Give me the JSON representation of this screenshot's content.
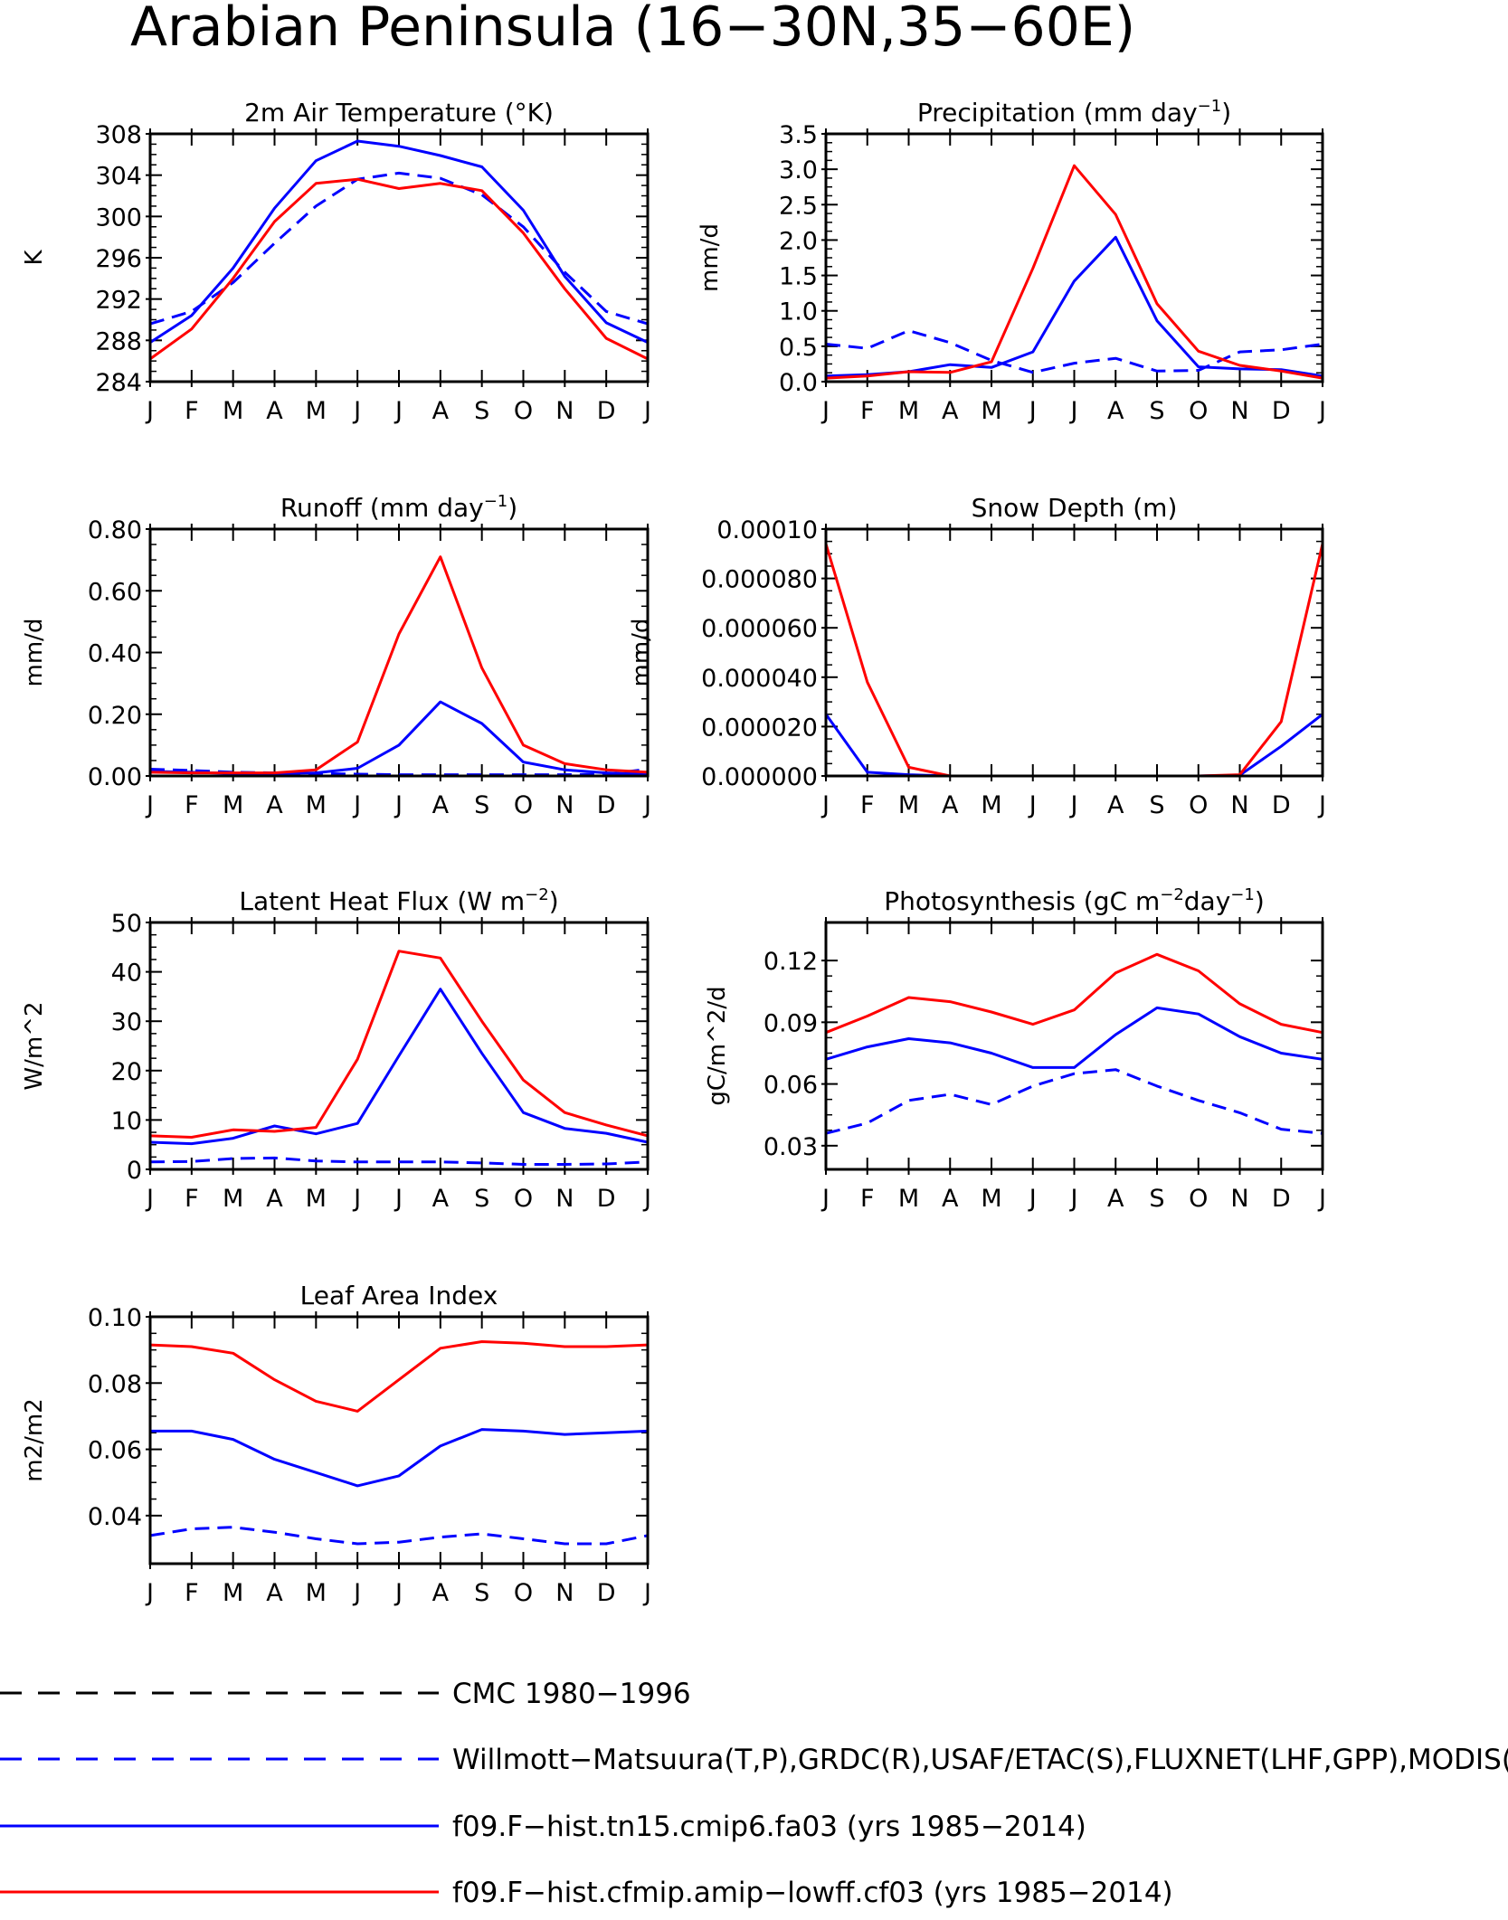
{
  "figure_title": "Arabian Peninsula (16−30N,35−60E)",
  "months": [
    "J",
    "F",
    "M",
    "A",
    "M",
    "J",
    "J",
    "A",
    "S",
    "O",
    "N",
    "D",
    "J"
  ],
  "colors": {
    "obs": "#0000ff",
    "model1": "#0000ff",
    "model2": "#ff0000",
    "cmc": "#000000"
  },
  "legend": [
    {
      "label": "CMC 1980−1996",
      "color": "#000000",
      "dash": "dashed"
    },
    {
      "label": "Willmott−Matsuura(T,P),GRDC(R),USAF/ETAC(S),FLUXNET(LHF,GPP),MODIS(L",
      "color": "#0000ff",
      "dash": "dashed"
    },
    {
      "label": "f09.F−hist.tn15.cmip6.fa03 (yrs 1985−2014)",
      "color": "#0000ff",
      "dash": "solid"
    },
    {
      "label": "f09.F−hist.cfmip.amip−lowff.cf03 (yrs 1985−2014)",
      "color": "#ff0000",
      "dash": "solid"
    }
  ],
  "chart_data": [
    {
      "type": "line",
      "title": "2m Air Temperature (°K)",
      "ylabel": "K",
      "ylim": [
        284,
        308
      ],
      "yticks": [
        284,
        288,
        292,
        296,
        300,
        304,
        308
      ],
      "ytick_labels": [
        "284",
        "288",
        "292",
        "296",
        "300",
        "304",
        "308"
      ],
      "series": [
        {
          "role": "obs",
          "values": [
            289.6,
            290.8,
            293.6,
            297.4,
            301.0,
            303.6,
            304.2,
            303.7,
            302.1,
            299.0,
            294.6,
            290.8,
            289.6
          ]
        },
        {
          "role": "model1",
          "values": [
            287.8,
            290.4,
            295.0,
            300.8,
            305.4,
            307.3,
            306.8,
            305.9,
            304.8,
            300.6,
            294.2,
            289.7,
            287.8
          ]
        },
        {
          "role": "model2",
          "values": [
            286.2,
            289.1,
            294.0,
            299.5,
            303.2,
            303.6,
            302.7,
            303.2,
            302.5,
            298.4,
            293.0,
            288.2,
            286.2
          ]
        }
      ]
    },
    {
      "type": "line",
      "title": "Precipitation (mm day",
      "title_sup": "−1",
      "title_end": ")",
      "ylabel": "mm/d",
      "ylim": [
        0,
        3.5
      ],
      "yticks": [
        0,
        0.5,
        1.0,
        1.5,
        2.0,
        2.5,
        3.0,
        3.5
      ],
      "ytick_labels": [
        "0.0",
        "0.5",
        "1.0",
        "1.5",
        "2.0",
        "2.5",
        "3.0",
        "3.5"
      ],
      "series": [
        {
          "role": "obs",
          "values": [
            0.53,
            0.47,
            0.72,
            0.55,
            0.3,
            0.13,
            0.26,
            0.33,
            0.15,
            0.16,
            0.42,
            0.45,
            0.53
          ]
        },
        {
          "role": "model1",
          "values": [
            0.08,
            0.1,
            0.14,
            0.24,
            0.2,
            0.42,
            1.42,
            2.04,
            0.86,
            0.21,
            0.18,
            0.17,
            0.08
          ]
        },
        {
          "role": "model2",
          "values": [
            0.05,
            0.08,
            0.14,
            0.13,
            0.28,
            1.6,
            3.05,
            2.36,
            1.1,
            0.43,
            0.23,
            0.15,
            0.05
          ]
        }
      ]
    },
    {
      "type": "line",
      "title": "Runoff (mm day",
      "title_sup": "−1",
      "title_end": ")",
      "ylabel": "mm/d",
      "ylim": [
        0,
        0.8
      ],
      "yticks": [
        0,
        0.2,
        0.4,
        0.6,
        0.8
      ],
      "ytick_labels": [
        "0.00",
        "0.20",
        "0.40",
        "0.60",
        "0.80"
      ],
      "series": [
        {
          "role": "obs",
          "values": [
            0.022,
            0.018,
            0.012,
            0.01,
            0.008,
            0.006,
            0.004,
            0.004,
            0.004,
            0.004,
            0.004,
            0.006,
            0.022
          ]
        },
        {
          "role": "model1",
          "values": [
            0.015,
            0.012,
            0.008,
            0.008,
            0.01,
            0.025,
            0.1,
            0.24,
            0.17,
            0.045,
            0.02,
            0.01,
            0.005
          ]
        },
        {
          "role": "model2",
          "values": [
            0.012,
            0.01,
            0.01,
            0.01,
            0.02,
            0.11,
            0.46,
            0.71,
            0.35,
            0.1,
            0.04,
            0.02,
            0.012
          ]
        },
        {
          "role": "cmc",
          "values": [
            0,
            0,
            0,
            0,
            0,
            0,
            0,
            0,
            0,
            0,
            0,
            0,
            0
          ]
        }
      ]
    },
    {
      "type": "line",
      "title": "Snow Depth (m)",
      "ylabel": "mm/d",
      "ylim": [
        0,
        0.0001
      ],
      "yticks": [
        0,
        2e-05,
        4e-05,
        6e-05,
        8e-05,
        0.0001
      ],
      "ytick_labels": [
        "0.000000",
        "0.000020",
        "0.000040",
        "0.000060",
        "0.000080",
        "0.00010"
      ],
      "series": [
        {
          "role": "obs",
          "values": [
            0,
            0,
            0,
            0,
            0,
            0,
            0,
            0,
            0,
            0,
            0,
            0,
            0
          ]
        },
        {
          "role": "model1",
          "values": [
            2.5e-05,
            1.5e-06,
            5e-07,
            0,
            0,
            0,
            0,
            0,
            0,
            0,
            3e-07,
            1.2e-05,
            2.5e-05
          ]
        },
        {
          "role": "model2",
          "values": [
            9.4e-05,
            3.8e-05,
            3.5e-06,
            0,
            0,
            0,
            0,
            0,
            0,
            0,
            5e-07,
            2.2e-05,
            9.4e-05
          ]
        }
      ]
    },
    {
      "type": "line",
      "title": "Latent Heat Flux (W m",
      "title_sup": "−2",
      "title_end": ")",
      "ylabel": "W/m^2",
      "ylim": [
        0,
        50
      ],
      "yticks": [
        0,
        10,
        20,
        30,
        40,
        50
      ],
      "ytick_labels": [
        "0",
        "10",
        "20",
        "30",
        "40",
        "50"
      ],
      "series": [
        {
          "role": "obs",
          "values": [
            1.5,
            1.6,
            2.2,
            2.3,
            1.7,
            1.5,
            1.5,
            1.5,
            1.3,
            1.0,
            1.0,
            1.1,
            1.5
          ]
        },
        {
          "role": "model1",
          "values": [
            5.5,
            5.2,
            6.3,
            8.8,
            7.2,
            9.3,
            23.0,
            36.5,
            23.5,
            11.5,
            8.3,
            7.3,
            5.5
          ]
        },
        {
          "role": "model2",
          "values": [
            6.8,
            6.5,
            8.0,
            7.7,
            8.5,
            22.3,
            44.2,
            42.8,
            30.0,
            18.1,
            11.5,
            9.0,
            6.8
          ]
        }
      ]
    },
    {
      "type": "line",
      "title": "Photosynthesis (gC m",
      "title_sup": "−2",
      "title_mid": "day",
      "title_sup2": "−1",
      "title_end": ")",
      "ylabel": "gC/m^2/d",
      "ylim": [
        0.0185,
        0.1385
      ],
      "yticks": [
        0.03,
        0.06,
        0.09,
        0.12
      ],
      "ytick_labels": [
        "0.03",
        "0.06",
        "0.09",
        "0.12"
      ],
      "series": [
        {
          "role": "obs",
          "values": [
            0.036,
            0.041,
            0.052,
            0.055,
            0.05,
            0.059,
            0.065,
            0.067,
            0.059,
            0.052,
            0.046,
            0.038,
            0.036
          ]
        },
        {
          "role": "model1",
          "values": [
            0.072,
            0.078,
            0.082,
            0.08,
            0.075,
            0.068,
            0.068,
            0.084,
            0.097,
            0.094,
            0.083,
            0.075,
            0.072
          ]
        },
        {
          "role": "model2",
          "values": [
            0.085,
            0.093,
            0.102,
            0.1,
            0.095,
            0.089,
            0.096,
            0.114,
            0.123,
            0.115,
            0.099,
            0.089,
            0.085
          ]
        }
      ]
    },
    {
      "type": "line",
      "title": "Leaf Area Index",
      "ylabel": "m2/m2",
      "ylim": [
        0.0255,
        0.1
      ],
      "yticks": [
        0.04,
        0.06,
        0.08,
        0.1
      ],
      "ytick_labels": [
        "0.04",
        "0.06",
        "0.08",
        "0.10"
      ],
      "series": [
        {
          "role": "obs",
          "values": [
            0.034,
            0.036,
            0.0365,
            0.035,
            0.033,
            0.0315,
            0.032,
            0.0335,
            0.0345,
            0.033,
            0.0315,
            0.0315,
            0.034
          ]
        },
        {
          "role": "model1",
          "values": [
            0.0655,
            0.0655,
            0.063,
            0.057,
            0.053,
            0.049,
            0.052,
            0.061,
            0.066,
            0.0655,
            0.0645,
            0.065,
            0.0655
          ]
        },
        {
          "role": "model2",
          "values": [
            0.0915,
            0.091,
            0.089,
            0.081,
            0.0745,
            0.0715,
            0.081,
            0.0905,
            0.0925,
            0.092,
            0.091,
            0.091,
            0.0915
          ]
        }
      ]
    }
  ]
}
